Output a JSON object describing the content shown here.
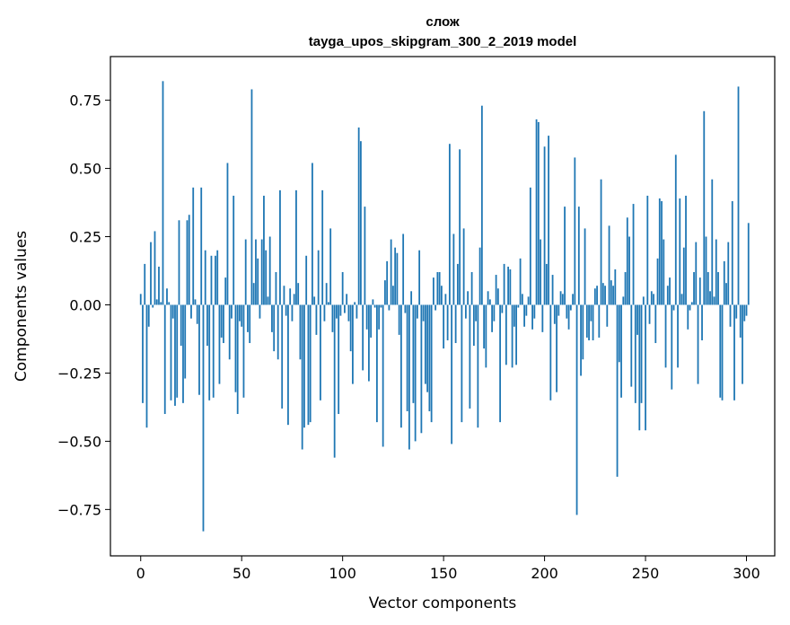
{
  "chart_data": {
    "type": "bar",
    "title_line1": "слож",
    "title_line2": "tayga_upos_skipgram_300_2_2019 model",
    "xlabel": "Vector components",
    "ylabel": "Components values",
    "xlim": [
      -15,
      314
    ],
    "ylim": [
      -0.92,
      0.91
    ],
    "xticks": [
      {
        "value": 0,
        "label": "0"
      },
      {
        "value": 50,
        "label": "50"
      },
      {
        "value": 100,
        "label": "100"
      },
      {
        "value": 150,
        "label": "150"
      },
      {
        "value": 200,
        "label": "200"
      },
      {
        "value": 250,
        "label": "250"
      },
      {
        "value": 300,
        "label": "300"
      }
    ],
    "yticks": [
      {
        "value": 0.75,
        "label": "0.75"
      },
      {
        "value": 0.5,
        "label": "0.50"
      },
      {
        "value": 0.25,
        "label": "0.25"
      },
      {
        "value": 0.0,
        "label": "0.00"
      },
      {
        "value": -0.25,
        "label": "−0.25"
      },
      {
        "value": -0.5,
        "label": "−0.50"
      },
      {
        "value": -0.75,
        "label": "−0.75"
      }
    ],
    "bar_color": "#1f77b4",
    "values": [
      0.04,
      -0.36,
      0.15,
      -0.45,
      -0.08,
      0.23,
      -0.01,
      0.27,
      0.02,
      0.14,
      0.01,
      0.82,
      -0.4,
      0.06,
      0.01,
      -0.35,
      -0.05,
      -0.37,
      -0.34,
      0.31,
      -0.15,
      -0.36,
      -0.27,
      0.31,
      0.33,
      -0.05,
      0.43,
      0.02,
      -0.07,
      -0.33,
      0.43,
      -0.83,
      0.2,
      -0.15,
      -0.35,
      0.18,
      -0.34,
      0.18,
      0.2,
      -0.29,
      -0.12,
      -0.14,
      0.1,
      0.52,
      -0.2,
      -0.05,
      0.4,
      -0.32,
      -0.4,
      -0.06,
      -0.08,
      -0.34,
      0.24,
      -0.1,
      -0.14,
      0.79,
      0.08,
      0.24,
      0.17,
      -0.05,
      0.24,
      0.4,
      0.2,
      0.03,
      0.25,
      -0.1,
      -0.17,
      0.12,
      -0.2,
      0.42,
      -0.38,
      0.07,
      -0.04,
      -0.44,
      0.06,
      -0.06,
      0.04,
      0.42,
      0.08,
      -0.2,
      -0.53,
      -0.45,
      0.18,
      -0.44,
      -0.43,
      0.52,
      0.03,
      -0.11,
      0.2,
      -0.35,
      0.42,
      -0.06,
      0.08,
      0.01,
      0.28,
      -0.1,
      -0.56,
      -0.05,
      -0.4,
      -0.04,
      0.12,
      -0.03,
      0.04,
      -0.06,
      -0.17,
      -0.29,
      0.01,
      -0.05,
      0.65,
      0.6,
      -0.24,
      0.36,
      -0.09,
      -0.28,
      -0.12,
      0.02,
      -0.01,
      -0.43,
      -0.09,
      -0.01,
      -0.52,
      0.09,
      0.16,
      -0.02,
      0.24,
      0.07,
      0.21,
      0.19,
      -0.11,
      -0.45,
      0.26,
      -0.03,
      -0.39,
      -0.53,
      0.05,
      -0.36,
      -0.5,
      -0.05,
      0.2,
      -0.47,
      -0.06,
      -0.29,
      -0.32,
      -0.39,
      -0.43,
      0.1,
      -0.02,
      0.12,
      0.12,
      0.07,
      -0.16,
      0.04,
      -0.13,
      0.59,
      -0.51,
      0.26,
      -0.14,
      0.15,
      0.57,
      -0.43,
      0.28,
      -0.05,
      0.05,
      -0.38,
      0.12,
      -0.15,
      -0.06,
      -0.45,
      0.21,
      0.73,
      -0.16,
      -0.23,
      0.05,
      0.02,
      -0.1,
      -0.06,
      0.11,
      0.06,
      -0.43,
      -0.03,
      0.15,
      -0.22,
      0.14,
      0.13,
      -0.23,
      -0.08,
      -0.22,
      -0.01,
      0.17,
      0.04,
      -0.08,
      -0.04,
      0.03,
      0.43,
      -0.09,
      -0.05,
      0.68,
      0.67,
      0.24,
      -0.1,
      0.58,
      0.15,
      0.62,
      -0.35,
      0.11,
      -0.07,
      -0.32,
      -0.04,
      0.05,
      0.04,
      0.36,
      -0.05,
      -0.09,
      -0.02,
      0.04,
      0.54,
      -0.77,
      0.36,
      -0.26,
      -0.2,
      0.28,
      -0.12,
      -0.13,
      -0.06,
      -0.13,
      0.06,
      0.07,
      -0.12,
      0.46,
      0.08,
      0.07,
      -0.08,
      0.29,
      0.09,
      0.07,
      0.13,
      -0.63,
      -0.21,
      -0.34,
      0.03,
      0.12,
      0.32,
      0.25,
      -0.3,
      0.37,
      -0.36,
      -0.11,
      -0.46,
      -0.36,
      0.03,
      -0.46,
      0.4,
      -0.07,
      0.05,
      0.04,
      -0.14,
      0.17,
      0.39,
      0.38,
      0.24,
      -0.23,
      0.07,
      0.1,
      -0.31,
      -0.02,
      0.55,
      -0.23,
      0.39,
      0.04,
      0.21,
      0.4,
      -0.09,
      -0.02,
      0.01,
      0.12,
      0.23,
      -0.29,
      0.1,
      -0.13,
      0.71,
      0.25,
      0.12,
      0.05,
      0.46,
      0.03,
      0.24,
      0.12,
      -0.34,
      -0.35,
      0.16,
      0.08,
      0.23,
      -0.08,
      0.38,
      -0.35,
      -0.05,
      0.8,
      -0.12,
      -0.29,
      -0.06,
      -0.04,
      0.3
    ]
  }
}
